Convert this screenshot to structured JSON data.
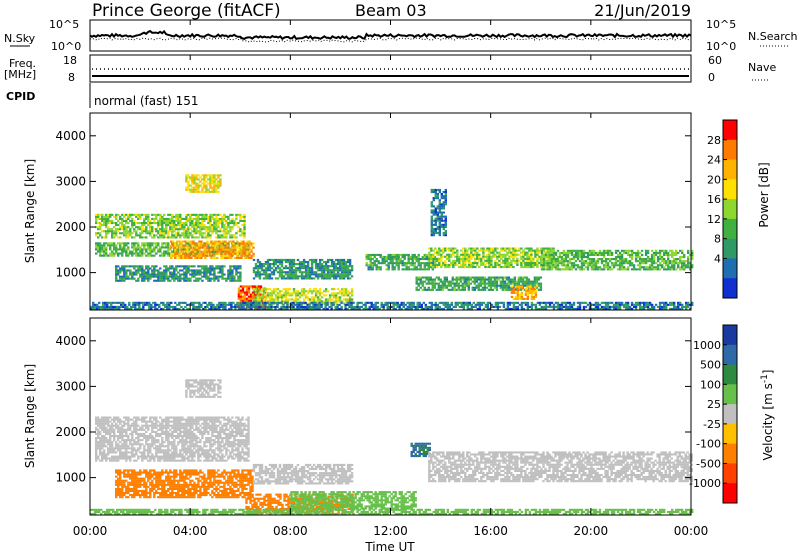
{
  "header": {
    "station": "Prince George (fitACF)",
    "beam": "Beam 03",
    "date": "21/Jun/2019"
  },
  "noise_panel": {
    "left_label": "N.Sky",
    "right_label": "N.Search",
    "y_ticks_left": [
      "10^5",
      "10^0"
    ],
    "y_ticks_right": [
      "10^5",
      "10^0"
    ]
  },
  "freq_panel": {
    "left_label_top": "Freq.",
    "left_label_bottom": "[MHz]",
    "right_label": "Nave",
    "y_ticks_left": [
      "18",
      "8"
    ],
    "y_ticks_right": [
      "60",
      "0"
    ]
  },
  "cpid_panel": {
    "label": "CPID",
    "mode_text": "normal (fast) 151"
  },
  "x_axis": {
    "label": "Time UT",
    "ticks": [
      "00:00",
      "04:00",
      "08:00",
      "12:00",
      "16:00",
      "20:00",
      "00:00"
    ]
  },
  "chart_data": [
    {
      "type": "heatmap",
      "name": "power",
      "ylabel": "Slant Range [km]",
      "y_ticks": [
        "4000",
        "3000",
        "2000",
        "1000"
      ],
      "ylim": [
        180,
        4500
      ],
      "xlim_hours": [
        0,
        24
      ],
      "colorbar": {
        "label": "Power [dB]",
        "ticks": [
          "28",
          "24",
          "20",
          "16",
          "12",
          "8",
          "4"
        ],
        "colors": [
          "#ff0000",
          "#ff7a00",
          "#ffb300",
          "#ffe000",
          "#8ed630",
          "#40b040",
          "#2f9a66",
          "#1f6fb0",
          "#1030d0"
        ]
      },
      "bands": [
        {
          "t0": 0.2,
          "t1": 6.3,
          "r0": 1350,
          "r1": 1650,
          "level": 14
        },
        {
          "t0": 0.2,
          "t1": 6.2,
          "r0": 1750,
          "r1": 2250,
          "level": 16
        },
        {
          "t0": 3.2,
          "t1": 6.5,
          "r0": 1300,
          "r1": 1700,
          "level": 24
        },
        {
          "t0": 1.0,
          "t1": 6.0,
          "r0": 800,
          "r1": 1150,
          "level": 10
        },
        {
          "t0": 3.8,
          "t1": 5.2,
          "r0": 2750,
          "r1": 3150,
          "level": 20
        },
        {
          "t0": 5.9,
          "t1": 7.0,
          "r0": 180,
          "r1": 700,
          "level": 28
        },
        {
          "t0": 6.5,
          "t1": 10.5,
          "r0": 300,
          "r1": 650,
          "level": 18
        },
        {
          "t0": 6.5,
          "t1": 10.5,
          "r0": 850,
          "r1": 1300,
          "level": 10
        },
        {
          "t0": 11.0,
          "t1": 13.8,
          "r0": 1050,
          "r1": 1400,
          "level": 12
        },
        {
          "t0": 13.5,
          "t1": 18.5,
          "r0": 1100,
          "r1": 1550,
          "level": 16
        },
        {
          "t0": 13.0,
          "t1": 18.0,
          "r0": 600,
          "r1": 900,
          "level": 12
        },
        {
          "t0": 16.8,
          "t1": 17.8,
          "r0": 400,
          "r1": 700,
          "level": 24
        },
        {
          "t0": 18.0,
          "t1": 24.0,
          "r0": 1050,
          "r1": 1500,
          "level": 14
        },
        {
          "t0": 13.6,
          "t1": 14.2,
          "r0": 1800,
          "r1": 2800,
          "level": 8
        },
        {
          "t0": 0.0,
          "t1": 24.0,
          "r0": 180,
          "r1": 320,
          "level": 8
        }
      ]
    },
    {
      "type": "heatmap",
      "name": "velocity",
      "ylabel": "Slant Range [km]",
      "y_ticks": [
        "4000",
        "3000",
        "2000",
        "1000"
      ],
      "ylim": [
        180,
        4500
      ],
      "xlim_hours": [
        0,
        24
      ],
      "colorbar": {
        "label": "Velocity [m s^-1]",
        "ticks": [
          "1000",
          "500",
          "100",
          "25",
          "-25",
          "-100",
          "-500",
          "-1000"
        ],
        "colors": [
          "#1a3aa0",
          "#2f6aa8",
          "#2e8a40",
          "#66c04a",
          "#c0c0c0",
          "#ffc000",
          "#ff8000",
          "#ff4000",
          "#ff0000"
        ]
      },
      "bands": [
        {
          "t0": 0.2,
          "t1": 6.3,
          "r0": 1350,
          "r1": 2300,
          "level": 0
        },
        {
          "t0": 3.8,
          "t1": 5.2,
          "r0": 2750,
          "r1": 3150,
          "level": 0
        },
        {
          "t0": 1.0,
          "t1": 6.5,
          "r0": 550,
          "r1": 1150,
          "level": -300
        },
        {
          "t0": 6.2,
          "t1": 10.5,
          "r0": 200,
          "r1": 650,
          "level": -200
        },
        {
          "t0": 6.5,
          "t1": 10.5,
          "r0": 850,
          "r1": 1300,
          "level": 0
        },
        {
          "t0": 12.8,
          "t1": 13.6,
          "r0": 1450,
          "r1": 1750,
          "level": 600
        },
        {
          "t0": 13.5,
          "t1": 24.0,
          "r0": 900,
          "r1": 1550,
          "level": 0
        },
        {
          "t0": 8.0,
          "t1": 13.0,
          "r0": 300,
          "r1": 700,
          "level": 60
        },
        {
          "t0": 0.0,
          "t1": 24.0,
          "r0": 180,
          "r1": 300,
          "level": 60
        }
      ]
    }
  ]
}
